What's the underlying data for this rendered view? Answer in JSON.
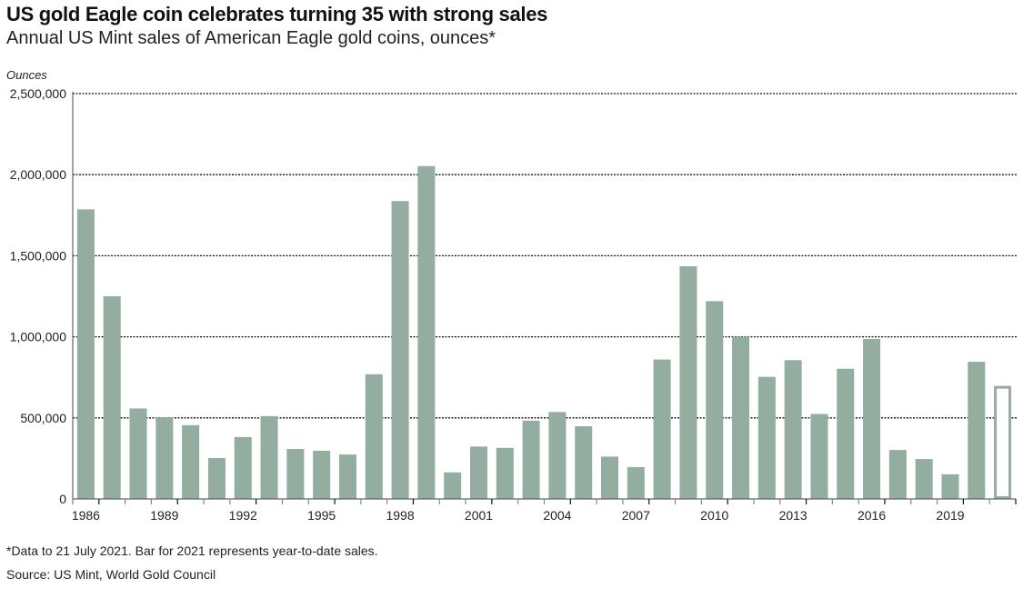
{
  "chart_data": {
    "type": "bar",
    "title": "US gold Eagle coin celebrates turning 35 with strong sales",
    "subtitle": "Annual US Mint sales of American Eagle gold coins, ounces*",
    "ylabel": "Ounces",
    "xlabel": "",
    "ylim": [
      0,
      2500000
    ],
    "yticks": [
      0,
      500000,
      1000000,
      1500000,
      2000000,
      2500000
    ],
    "ytick_labels": [
      "0",
      "500,000",
      "1,000,000",
      "1,500,000",
      "2,000,000",
      "2,500,000"
    ],
    "xtick_labels": [
      "1986",
      "1989",
      "1992",
      "1995",
      "1998",
      "2001",
      "2004",
      "2007",
      "2010",
      "2013",
      "2016",
      "2019"
    ],
    "grid": true,
    "grid_style": "dotted horizontal",
    "legend": "none",
    "bar_color": "#93ada0",
    "categories": [
      "1986",
      "1987",
      "1988",
      "1989",
      "1990",
      "1991",
      "1992",
      "1993",
      "1994",
      "1995",
      "1996",
      "1997",
      "1998",
      "1999",
      "2000",
      "2001",
      "2002",
      "2003",
      "2004",
      "2005",
      "2006",
      "2007",
      "2008",
      "2009",
      "2010",
      "2011",
      "2012",
      "2013",
      "2014",
      "2015",
      "2016",
      "2017",
      "2018",
      "2019",
      "2020",
      "2021"
    ],
    "values": [
      1786000,
      1250000,
      558000,
      502000,
      455000,
      252000,
      382000,
      511000,
      308000,
      297000,
      274000,
      769000,
      1837000,
      2053000,
      164000,
      323000,
      315000,
      483000,
      536000,
      448000,
      261000,
      196000,
      860000,
      1435000,
      1220000,
      1000000,
      753000,
      856000,
      524000,
      803000,
      987000,
      302000,
      246000,
      152000,
      846000,
      697000
    ],
    "outlined_categories": [
      "2021"
    ],
    "annotations": []
  },
  "footnote": "*Data to 21 July 2021. Bar for 2021 represents year-to-date sales.",
  "source": "Source: US Mint, World Gold Council"
}
